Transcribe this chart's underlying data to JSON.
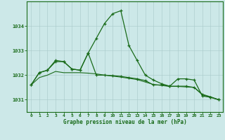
{
  "title": "Graphe pression niveau de la mer (hPa)",
  "hours": [
    0,
    1,
    2,
    3,
    4,
    5,
    6,
    7,
    8,
    9,
    10,
    11,
    12,
    13,
    14,
    15,
    16,
    17,
    18,
    19,
    20,
    21,
    22,
    23
  ],
  "series_peak": [
    1031.6,
    1032.1,
    1032.2,
    1032.6,
    1032.55,
    1032.25,
    1032.2,
    1032.9,
    1033.5,
    1034.1,
    1034.5,
    1034.62,
    1033.2,
    1032.6,
    1032.0,
    1031.8,
    1031.65,
    1031.55,
    1031.85,
    1031.85,
    1031.8,
    1031.15,
    1031.1,
    1031.0
  ],
  "series_flat": [
    1031.6,
    1032.1,
    1032.2,
    1032.55,
    1032.55,
    1032.25,
    1032.2,
    1032.9,
    1032.0,
    1032.0,
    1031.98,
    1031.95,
    1031.9,
    1031.85,
    1031.78,
    1031.6,
    1031.6,
    1031.55,
    1031.55,
    1031.55,
    1031.5,
    1031.2,
    1031.1,
    1031.0
  ],
  "series_diag": [
    1031.6,
    1031.9,
    1032.0,
    1032.15,
    1032.1,
    1032.1,
    1032.1,
    1032.08,
    1032.05,
    1032.0,
    1031.96,
    1031.92,
    1031.87,
    1031.82,
    1031.72,
    1031.62,
    1031.58,
    1031.54,
    1031.54,
    1031.52,
    1031.5,
    1031.22,
    1031.12,
    1031.0
  ],
  "line_color": "#1a6b1a",
  "bg_color": "#cce8e8",
  "grid_color": "#a8c8c8",
  "ylim": [
    1030.5,
    1035.0
  ],
  "yticks": [
    1031,
    1032,
    1033,
    1034
  ],
  "figsize": [
    3.2,
    2.0
  ],
  "dpi": 100
}
